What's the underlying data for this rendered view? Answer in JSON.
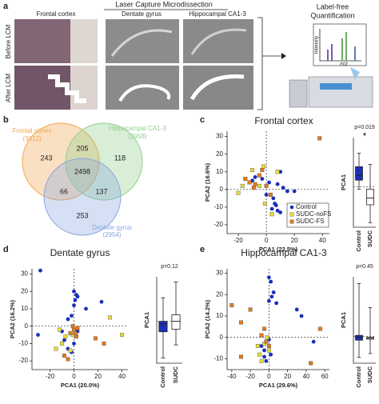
{
  "panel_a": {
    "label": "a",
    "title": "Laser Capture Microdissection",
    "columns": [
      "Frontal cortex",
      "Dentate gyrus",
      "Hippocampal CA1-3"
    ],
    "rows": [
      "Before LCM",
      "After LCM"
    ],
    "quant_title": [
      "Label-free",
      "Quantification"
    ],
    "spectrum_y": "Intensity",
    "spectrum_x": "m/z"
  },
  "panel_b": {
    "label": "b",
    "sets": [
      {
        "name": "Frontal cortex",
        "count": "(3012)",
        "color": "#f2a650"
      },
      {
        "name": "Hippocampal CA1-3",
        "count": "(2958)",
        "color": "#8fcf8a"
      },
      {
        "name": "Dentate gyrus",
        "count": "(2954)",
        "color": "#8aa6e0"
      }
    ],
    "regions": [
      243,
      205,
      118,
      2498,
      66,
      137,
      253
    ]
  },
  "chart_data": [
    {
      "type": "scatter",
      "label": "c",
      "title": "Frontal cortex",
      "x_label": "PCA1 (22.5%)",
      "y_label": "PCA2 (16.6%)",
      "xlim": [
        -28,
        45
      ],
      "ylim": [
        -25,
        33
      ],
      "xticks": [
        -20,
        0,
        20,
        40
      ],
      "yticks": [
        -20,
        -10,
        0,
        10,
        20,
        30
      ],
      "legend": "lower right",
      "series": [
        {
          "name": "Control",
          "color": "#1a2fb8",
          "marker": "circle",
          "x": [
            10,
            8,
            12,
            15,
            20,
            5,
            6,
            7,
            4,
            8,
            10,
            2,
            0,
            -3,
            -8,
            -10
          ],
          "y": [
            10,
            3,
            1,
            -1,
            -1,
            -5,
            -8,
            -9,
            -11,
            -12,
            -13,
            4,
            -3,
            6,
            7,
            5
          ]
        },
        {
          "name": "SUDC-noFS",
          "color": "#e6dc3c",
          "marker": "square",
          "x": [
            -10,
            -2,
            8,
            -17,
            -20,
            -1,
            4,
            -5
          ],
          "y": [
            11,
            13,
            10,
            2,
            -2,
            -8,
            -14,
            2
          ]
        },
        {
          "name": "SUDC-FS",
          "color": "#e07a20",
          "marker": "square",
          "x": [
            38,
            -15,
            -12,
            -8,
            0,
            3,
            -5,
            35,
            -3,
            -9
          ],
          "y": [
            29,
            6,
            4,
            3,
            2,
            -3,
            8,
            -17,
            11,
            1
          ]
        }
      ],
      "box": {
        "type": "box",
        "p_label": "p=0.019",
        "annotation": "*",
        "y_label": "PCA1",
        "categories": [
          "Control",
          "SUDC"
        ],
        "colors": [
          "#1a2fb8",
          "#ffffff"
        ],
        "ylim": [
          -18,
          22
        ],
        "stats": [
          {
            "min": -1,
            "q1": 3,
            "median": 5,
            "q3": 9,
            "max": 15
          },
          {
            "min": -16,
            "q1": -8,
            "median": -5,
            "q3": -1,
            "max": 10
          }
        ]
      }
    },
    {
      "type": "scatter",
      "label": "d",
      "title": "Dentate gyrus",
      "x_label": "PCA1 (20.0%)",
      "y_label": "PCA2 (16.2%)",
      "xlim": [
        -35,
        45
      ],
      "ylim": [
        -25,
        33
      ],
      "xticks": [
        -20,
        0,
        20,
        40
      ],
      "yticks": [
        -20,
        -10,
        0,
        10,
        20,
        30
      ],
      "series": [
        {
          "name": "Control",
          "color": "#1a2fb8",
          "marker": "circle",
          "x": [
            -28,
            0,
            2,
            1,
            3,
            0,
            -2,
            -5,
            23,
            10,
            -30,
            2,
            -10,
            -8,
            -5,
            -2,
            0,
            3
          ],
          "y": [
            32,
            20,
            18,
            15,
            17,
            12,
            6,
            4,
            14,
            10,
            -5,
            -2,
            -3,
            -8,
            -13,
            -15,
            -10,
            -3
          ]
        },
        {
          "name": "SUDC-noFS",
          "color": "#e6dc3c",
          "marker": "square",
          "x": [
            30,
            40,
            -10,
            -15,
            -7,
            -3,
            -1,
            -12
          ],
          "y": [
            5,
            -5,
            -10,
            -13,
            -6,
            -14,
            -5,
            -2
          ]
        },
        {
          "name": "SUDC-FS",
          "color": "#e07a20",
          "marker": "square",
          "x": [
            0,
            1,
            3,
            -1,
            2,
            -3,
            18,
            25,
            -5,
            -8
          ],
          "y": [
            -2,
            -4,
            -1,
            0,
            -6,
            -4,
            -7,
            -10,
            -19,
            -17
          ]
        }
      ],
      "box": {
        "type": "box",
        "p_label": "p=0.12",
        "y_label": "PCA1",
        "categories": [
          "Control",
          "SUDC"
        ],
        "colors": [
          "#1a2fb8",
          "#ffffff"
        ],
        "ylim": [
          -32,
          34
        ],
        "stats": [
          {
            "min": -28,
            "q1": -8,
            "median": -2,
            "q3": 0,
            "max": 18
          },
          {
            "min": -18,
            "q1": -6,
            "median": 0,
            "q3": 5,
            "max": 30
          }
        ]
      }
    },
    {
      "type": "scatter",
      "label": "e",
      "title": "Hippocampal CA1-3",
      "x_label": "PCA1 (29.6%)",
      "y_label": "PCA2 (14.2%)",
      "xlim": [
        -45,
        65
      ],
      "ylim": [
        -15,
        32
      ],
      "xticks": [
        -40,
        -20,
        0,
        20,
        40,
        60
      ],
      "yticks": [
        -10,
        0,
        10,
        20,
        30
      ],
      "series": [
        {
          "name": "Control",
          "color": "#1a2fb8",
          "marker": "circle",
          "x": [
            0,
            2,
            5,
            3,
            0,
            8,
            30,
            35,
            48,
            -5,
            -8,
            -5,
            -3,
            0,
            2
          ],
          "y": [
            28,
            26,
            21,
            19,
            17,
            16,
            13,
            10,
            -2,
            -6,
            -4,
            -9,
            -11,
            -1,
            -8
          ]
        },
        {
          "name": "SUDC-noFS",
          "color": "#e6dc3c",
          "marker": "square",
          "x": [
            -10,
            -8,
            -5,
            0,
            -12,
            -2
          ],
          "y": [
            -8,
            -11,
            -3,
            -6,
            -4,
            0
          ]
        },
        {
          "name": "SUDC-FS",
          "color": "#e07a20",
          "marker": "square",
          "x": [
            -40,
            -20,
            -30,
            -5,
            -3,
            0,
            -30,
            45,
            55,
            -8
          ],
          "y": [
            15,
            13,
            7,
            4,
            -2,
            -4,
            -9,
            -12,
            4,
            1
          ]
        }
      ],
      "box": {
        "type": "box",
        "p_label": "p=0.45",
        "y_label": "PCA1",
        "categories": [
          "Control",
          "SUDC"
        ],
        "colors": [
          "#1a2fb8",
          "#ffffff"
        ],
        "ylim": [
          -28,
          62
        ],
        "stats": [
          {
            "min": -22,
            "q1": -4,
            "median": -1,
            "q3": 1,
            "max": 55
          },
          {
            "min": -18,
            "q1": -3,
            "median": -2,
            "q3": -1,
            "max": 30
          }
        ]
      }
    }
  ]
}
